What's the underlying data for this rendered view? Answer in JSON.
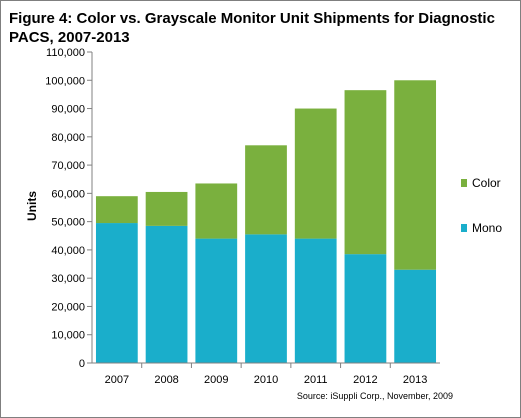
{
  "chart_data": {
    "type": "bar",
    "stacked": true,
    "title": "Figure 4: Color vs. Grayscale Monitor Unit Shipments for Diagnostic PACS, 2007-2013",
    "ylabel": "Units",
    "xlabel": "",
    "ylim": [
      0,
      110000
    ],
    "ytick_step": 10000,
    "y_tick_labels": [
      "0",
      "10,000",
      "20,000",
      "30,000",
      "40,000",
      "50,000",
      "60,000",
      "70,000",
      "80,000",
      "90,000",
      "100,000",
      "110,000"
    ],
    "categories": [
      "2007",
      "2008",
      "2009",
      "2010",
      "2011",
      "2012",
      "2013"
    ],
    "series": [
      {
        "name": "Mono",
        "color": "#1aaecb",
        "values": [
          49500,
          48500,
          44000,
          45500,
          44000,
          38500,
          33000
        ]
      },
      {
        "name": "Color",
        "color": "#7ab03e",
        "values": [
          9500,
          12000,
          19500,
          31500,
          46000,
          58000,
          67000
        ]
      }
    ],
    "legend_position": "right",
    "legend_order": [
      "Color",
      "Mono"
    ],
    "grid": false,
    "source": "Source: iSuppli Corp., November, 2009"
  }
}
